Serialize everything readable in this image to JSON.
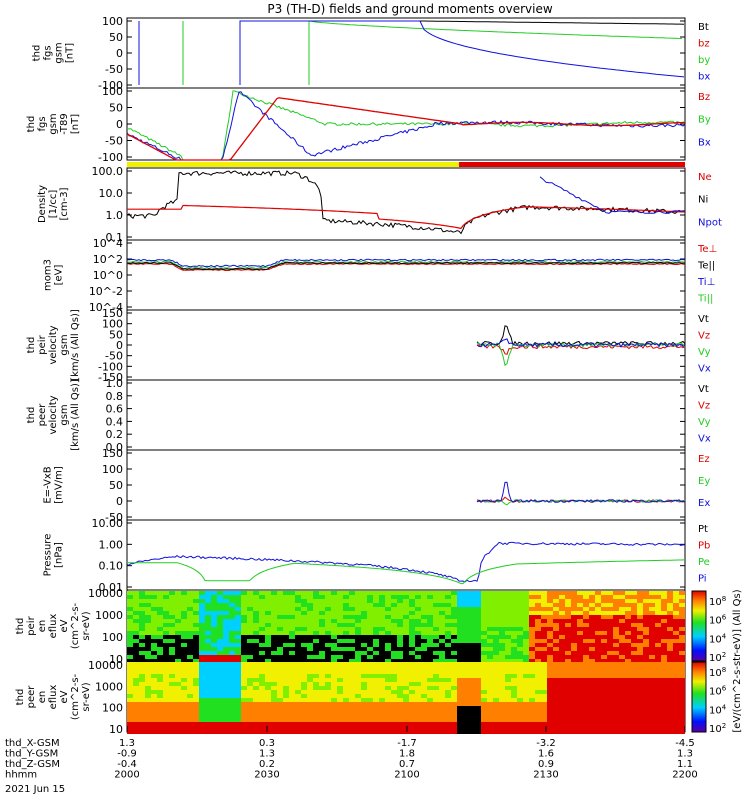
{
  "title": "P3 (TH-D) fields and ground moments overview",
  "date": "2021 Jun 15",
  "time_axis": {
    "rows": [
      {
        "label": "thd_X-GSM",
        "values": [
          "1.3",
          "0.3",
          "-1.7",
          "-3.2",
          "-4.5"
        ]
      },
      {
        "label": "thd_Y-GSM",
        "values": [
          "-0.9",
          "1.3",
          "1.8",
          "1.6",
          "1.3"
        ]
      },
      {
        "label": "thd_Z-GSM",
        "values": [
          "-0.4",
          "0.2",
          "0.7",
          "0.9",
          "1.1"
        ]
      },
      {
        "label": "hhmm",
        "values": [
          "2000",
          "2030",
          "2100",
          "2130",
          "2200"
        ]
      }
    ]
  },
  "colorbar": {
    "upper_ticks": [
      "10^8",
      "10^6",
      "10^4",
      "10^2"
    ],
    "lower_ticks": [
      "10^8",
      "10^6",
      "10^4",
      "10^2"
    ],
    "label": "[eV/(cm^2-s-str-eV)] (All Qs)"
  },
  "chart_data": [
    {
      "type": "line",
      "ylabel": "thd fgs gsm [nT]",
      "ylim": [
        -100,
        100
      ],
      "yticks": [
        "100",
        "50",
        "0",
        "-50",
        "-100"
      ],
      "legend": [
        {
          "name": "Bt",
          "color": "#000000"
        },
        {
          "name": "bz",
          "color": "#e00000"
        },
        {
          "name": "by",
          "color": "#22cc22"
        },
        {
          "name": "bx",
          "color": "#1010e0"
        }
      ],
      "x": [
        "2000",
        "2030",
        "2100",
        "2130",
        "2200"
      ],
      "series": [
        {
          "name": "by",
          "values": [
            60,
            100,
            95,
            80,
            50
          ]
        },
        {
          "name": "bx",
          "values": [
            -100,
            100,
            10,
            -60,
            -75
          ]
        }
      ]
    },
    {
      "type": "line",
      "ylabel": "thd fgs gsm -T89 [nT]",
      "ylim": [
        -120,
        120
      ],
      "yticks": [
        "100",
        "50",
        "0",
        "-50",
        "-100"
      ],
      "legend": [
        {
          "name": "Bz",
          "color": "#e00000"
        },
        {
          "name": "By",
          "color": "#22cc22"
        },
        {
          "name": "Bx",
          "color": "#1010e0"
        }
      ],
      "x": [
        "2000",
        "2030",
        "2100",
        "2130",
        "2200"
      ],
      "series": [
        {
          "name": "Bz",
          "values": [
            -20,
            80,
            0,
            0,
            0
          ]
        },
        {
          "name": "By",
          "values": [
            -20,
            100,
            0,
            5,
            0
          ]
        },
        {
          "name": "Bx",
          "values": [
            -20,
            100,
            -40,
            0,
            0
          ]
        }
      ]
    },
    {
      "type": "line",
      "ylabel": "Density [1/cc] [cm-3]",
      "scale": "log",
      "ylim": [
        0.1,
        100
      ],
      "yticks": [
        "100.0",
        "10.0",
        "1.0",
        "0.1"
      ],
      "legend": [
        {
          "name": "Ne",
          "color": "#e00000"
        },
        {
          "name": "Ni",
          "color": "#000000"
        },
        {
          "name": "Npot",
          "color": "#1010e0"
        }
      ],
      "x": [
        "2000",
        "2030",
        "2100",
        "2130",
        "2200"
      ],
      "series": [
        {
          "name": "Ne",
          "values": [
            1.5,
            2.5,
            0.4,
            2.5,
            1.5
          ]
        },
        {
          "name": "Ni",
          "values": [
            1.0,
            100,
            0.15,
            2.0,
            1.5
          ]
        }
      ]
    },
    {
      "type": "line",
      "ylabel": "mom3 [eV]",
      "scale": "log",
      "yticks": [
        "10^4",
        "10^2",
        "10^0",
        "10^-2",
        "10^-4"
      ],
      "legend": [
        {
          "name": "Te⊥",
          "color": "#e00000"
        },
        {
          "name": "Te||",
          "color": "#000000"
        },
        {
          "name": "Ti⊥",
          "color": "#1010e0"
        },
        {
          "name": "Ti||",
          "color": "#22cc22"
        }
      ],
      "x": [
        "2000",
        "2200"
      ],
      "series": []
    },
    {
      "type": "line",
      "ylabel": "thd peir velocity gsm [km/s (All Qs)]",
      "ylim": [
        -150,
        150
      ],
      "yticks": [
        "150",
        "100",
        "50",
        "0",
        "-50",
        "-100",
        "-150"
      ],
      "legend": [
        {
          "name": "Vt",
          "color": "#000000"
        },
        {
          "name": "Vz",
          "color": "#e00000"
        },
        {
          "name": "Vy",
          "color": "#22cc22"
        },
        {
          "name": "Vx",
          "color": "#1010e0"
        }
      ],
      "x": [
        "2000",
        "2200"
      ],
      "series": []
    },
    {
      "type": "line",
      "ylabel": "thd peer velocity gsm [km/s (All Qs)]",
      "ylim": [
        0,
        1
      ],
      "yticks": [
        "1.0",
        "0.8",
        "0.6",
        "0.4",
        "0.2",
        "0.0"
      ],
      "legend": [
        {
          "name": "Vt",
          "color": "#000000"
        },
        {
          "name": "Vz",
          "color": "#e00000"
        },
        {
          "name": "Vy",
          "color": "#22cc22"
        },
        {
          "name": "Vx",
          "color": "#1010e0"
        }
      ],
      "x": [
        "2000",
        "2200"
      ],
      "series": []
    },
    {
      "type": "line",
      "ylabel": "E=-VxB [mV/m]",
      "ylim": [
        -10,
        150
      ],
      "yticks": [
        "150",
        "100",
        "50",
        "0",
        "-50"
      ],
      "legend": [
        {
          "name": "Ez",
          "color": "#e00000"
        },
        {
          "name": "Ey",
          "color": "#22cc22"
        },
        {
          "name": "Ex",
          "color": "#1010e0"
        }
      ],
      "x": [
        "2000",
        "2200"
      ],
      "series": []
    },
    {
      "type": "line",
      "ylabel": "Pressure [nPa]",
      "scale": "log",
      "yticks": [
        "10.00",
        "1.00",
        "0.10",
        "0.01"
      ],
      "legend": [
        {
          "name": "Pt",
          "color": "#000000"
        },
        {
          "name": "Pb",
          "color": "#e00000"
        },
        {
          "name": "Pe",
          "color": "#22cc22"
        },
        {
          "name": "Pi",
          "color": "#1010e0"
        }
      ],
      "x": [
        "2000",
        "2200"
      ],
      "series": []
    },
    {
      "type": "heatmap",
      "ylabel": "thd peir en eflux eV (cm^2-s-sr-eV)",
      "scale": "log",
      "yticks": [
        "10000",
        "1000",
        "100",
        "10"
      ]
    },
    {
      "type": "heatmap",
      "ylabel": "thd peer en eflux eV (cm^2-s-sr-eV)",
      "scale": "log",
      "yticks": [
        "10000",
        "1000",
        "100",
        "10"
      ]
    }
  ]
}
